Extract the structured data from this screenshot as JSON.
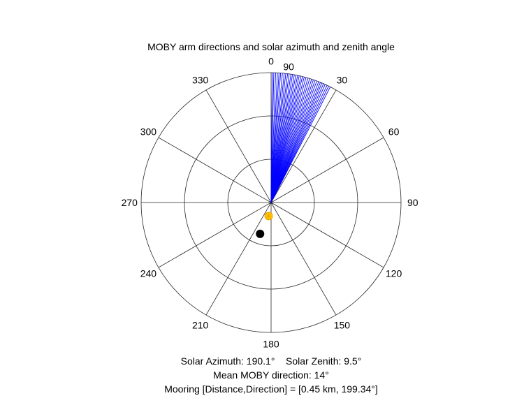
{
  "chart_data": {
    "type": "polar",
    "title": "MOBY arm directions and solar azimuth and zenith angle",
    "theta_zero": "top",
    "theta_direction": "clockwise",
    "r_max": 90,
    "r_rings": [
      30,
      60,
      90
    ],
    "r_tick_labels": [
      "90"
    ],
    "theta_tick_labels": [
      {
        "angle": 0,
        "label": "0"
      },
      {
        "angle": 30,
        "label": "30"
      },
      {
        "angle": 60,
        "label": "60"
      },
      {
        "angle": 90,
        "label": "90"
      },
      {
        "angle": 120,
        "label": "120"
      },
      {
        "angle": 150,
        "label": "150"
      },
      {
        "angle": 180,
        "label": "180"
      },
      {
        "angle": 210,
        "label": "210"
      },
      {
        "angle": 240,
        "label": "240"
      },
      {
        "angle": 270,
        "label": "270"
      },
      {
        "angle": 300,
        "label": "300"
      },
      {
        "angle": 330,
        "label": "330"
      }
    ],
    "moby_arm_directions": {
      "color": "#0000ff",
      "length": 90,
      "angles_deg": [
        0.5,
        1.2,
        2,
        2.8,
        3.5,
        4.2,
        5,
        5.8,
        6.5,
        7.3,
        8,
        8.8,
        9.5,
        10.3,
        11,
        11.8,
        12.5,
        13.3,
        14,
        14.8,
        15.6,
        16.5,
        17.3,
        18.2,
        19,
        19.8,
        20.6,
        21.5,
        22.3,
        23,
        23.8,
        24.6,
        25.5,
        26.3,
        27.1
      ]
    },
    "sun": {
      "azimuth_deg": 190.1,
      "zenith_deg": 9.5,
      "color": "#ffcc00"
    },
    "mooring": {
      "direction_deg": 199.34,
      "r": 23,
      "color": "#000000"
    },
    "caption_lines": [
      "Solar Azimuth: 190.1°    Solar Zenith: 9.5°",
      "Mean MOBY direction: 14°",
      "Mooring [Distance,Direction] = [0.45 km, 199.34°]"
    ]
  }
}
